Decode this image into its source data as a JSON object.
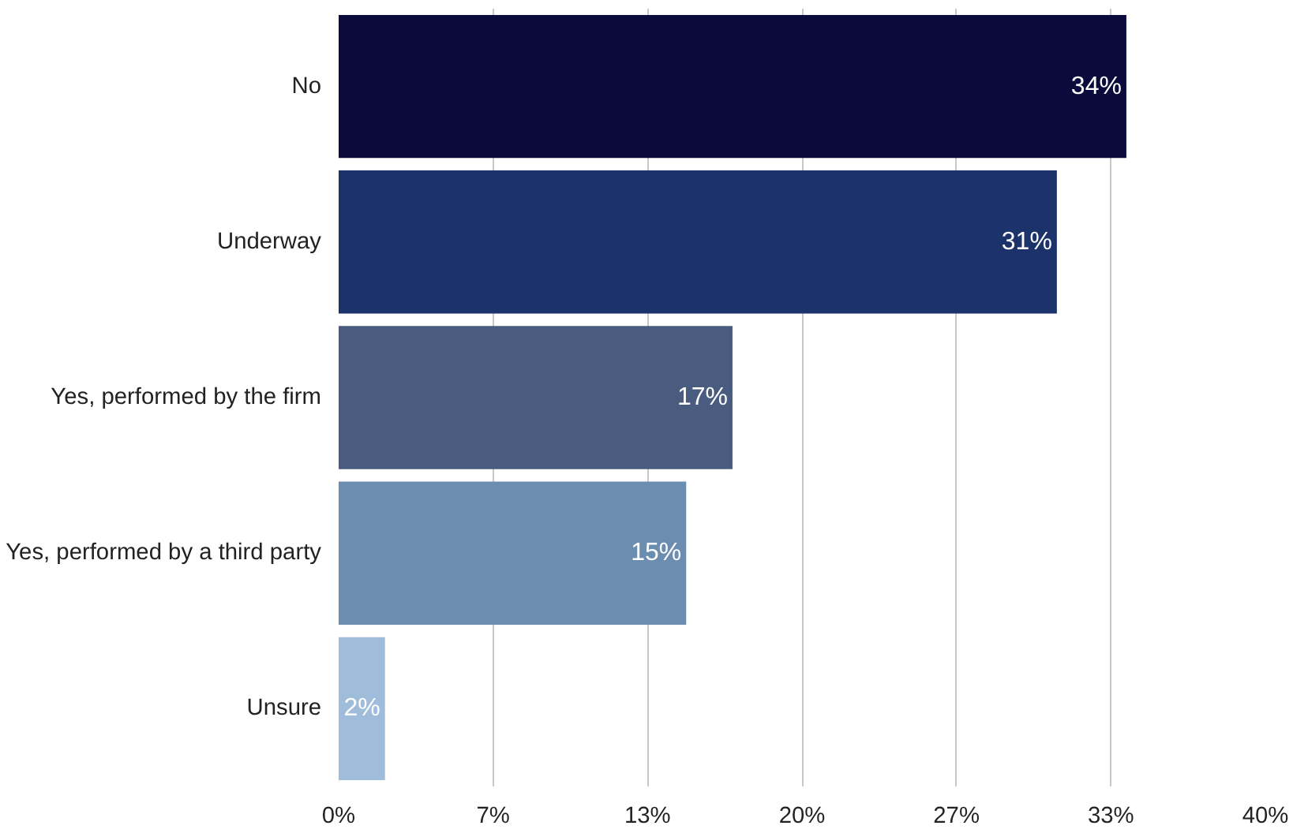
{
  "chart_data": {
    "type": "bar",
    "orientation": "horizontal",
    "categories": [
      "No",
      "Underway",
      "Yes, performed by the firm",
      "Yes, performed by a third party",
      "Unsure"
    ],
    "values": [
      34,
      31,
      17,
      15,
      2
    ],
    "colors": [
      "#0a0a3c",
      "#1b336a",
      "#4a5b80",
      "#6a8db0",
      "#9fbcdb"
    ],
    "value_labels": [
      "34%",
      "31%",
      "17%",
      "15%",
      "2%"
    ],
    "xlim": [
      0,
      40
    ],
    "xticks": [
      {
        "value": 0,
        "label": "0%"
      },
      {
        "value": 6.667,
        "label": "7%"
      },
      {
        "value": 13.333,
        "label": "13%"
      },
      {
        "value": 20,
        "label": "20%"
      },
      {
        "value": 26.667,
        "label": "27%"
      },
      {
        "value": 33.333,
        "label": "33%"
      },
      {
        "value": 40,
        "label": "40%"
      }
    ],
    "grid": "x"
  }
}
